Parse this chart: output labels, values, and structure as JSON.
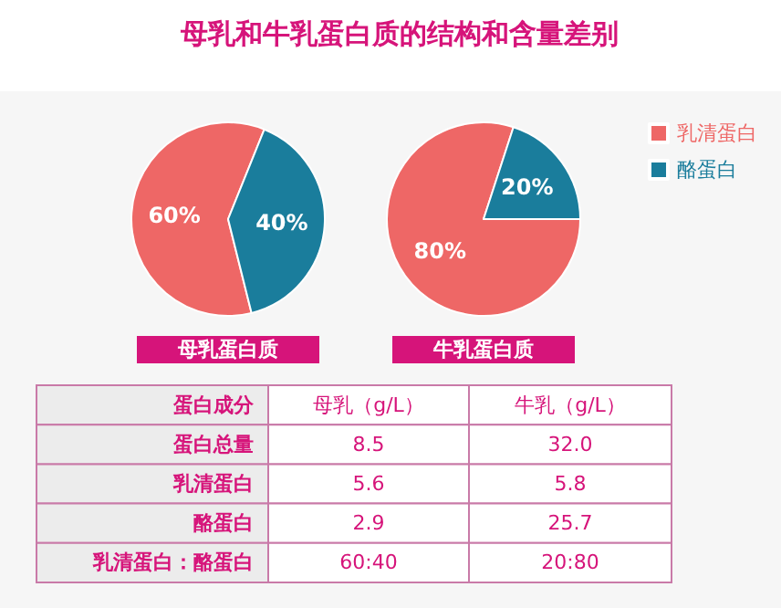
{
  "chart_data": [
    {
      "type": "pie",
      "title": "母乳和牛乳蛋白质的结构和含量差别",
      "categories": [
        "乳清蛋白",
        "酪蛋白"
      ],
      "colors": [
        "#ee6766",
        "#1a7d9c"
      ],
      "legend": "top right",
      "series": [
        {
          "name": "母乳蛋白质",
          "values": [
            60,
            40
          ],
          "value_labels": [
            "60%",
            "40%"
          ]
        },
        {
          "name": "牛乳蛋白质",
          "values": [
            80,
            20
          ],
          "value_labels": [
            "80%",
            "20%"
          ]
        }
      ]
    },
    {
      "type": "other",
      "xlabel": "蛋白成分",
      "categories": [
        "蛋白总量",
        "乳清蛋白",
        "酪蛋白",
        "乳清蛋白：酪蛋白"
      ],
      "series": [
        {
          "name": "母乳（g/L）",
          "values": [
            8.5,
            5.6,
            2.9,
            null
          ],
          "value_labels": [
            "8.5",
            "5.6",
            "2.9",
            "60:40"
          ]
        },
        {
          "name": "牛乳（g/L）",
          "values": [
            32.0,
            5.8,
            25.7,
            null
          ],
          "value_labels": [
            "32.0",
            "5.8",
            "25.7",
            "20:80"
          ]
        }
      ]
    }
  ]
}
